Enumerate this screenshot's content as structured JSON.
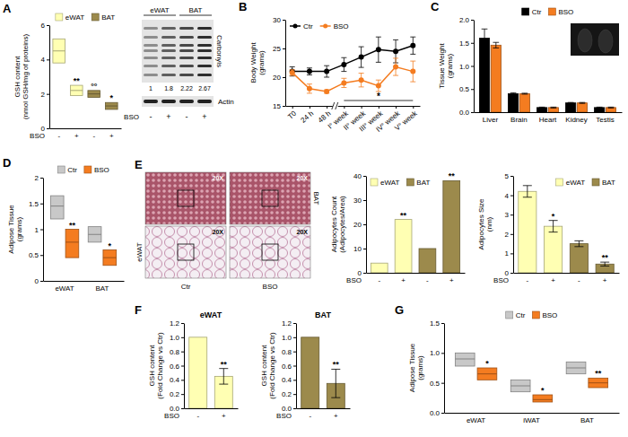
{
  "chart_data": [
    {
      "panel": "A",
      "type": "box",
      "y_label": [
        "GSH content",
        "(nmol GSH/mg of proteins)"
      ],
      "x_label": "BSO",
      "categories": [
        "-",
        "+",
        "-",
        "+"
      ],
      "values": [
        4.5,
        2.2,
        2.0,
        1.3
      ],
      "low": [
        3.8,
        1.9,
        1.8,
        1.1
      ],
      "high": [
        5.2,
        2.5,
        2.2,
        1.5
      ],
      "colors": [
        "#ffffb3",
        "#ffffb3",
        "#9c8a4c",
        "#9c8a4c"
      ],
      "legend_entries": [
        {
          "name": "eWAT",
          "color": "#ffffb3"
        },
        {
          "name": "BAT",
          "color": "#9c8a4c"
        }
      ],
      "significance": [
        null,
        "**",
        "°°",
        "*"
      ],
      "ylim": [
        0,
        6
      ],
      "yticks": [
        0,
        2,
        4,
        6
      ],
      "legend": "top"
    },
    {
      "panel": "B",
      "type": "line",
      "y_label": [
        "Body Weight",
        "(grams)"
      ],
      "categories": [
        "T0",
        "24 h",
        "48 h",
        "I° week",
        "II° week",
        "III° week",
        "IV° week",
        "V° week"
      ],
      "series": [
        {
          "name": "Ctr",
          "color": "#000000",
          "values": [
            21,
            21,
            21,
            22.2,
            23.5,
            24.8,
            24.5,
            25.5
          ],
          "errors": [
            0.8,
            0.6,
            1.0,
            1.2,
            1.8,
            2.2,
            2.0,
            1.5
          ]
        },
        {
          "name": "BSO",
          "color": "#f47c20",
          "values": [
            20.8,
            18,
            17.5,
            19,
            19.5,
            18.5,
            21.8,
            21
          ],
          "errors": [
            0.5,
            0.8,
            0.3,
            0.8,
            1.2,
            1.0,
            1.5,
            1.8
          ]
        }
      ],
      "annotation": "*",
      "ylim": [
        15,
        30
      ],
      "yticks": [
        15,
        20,
        25,
        30
      ],
      "marker": "circle",
      "legend": "top-left"
    },
    {
      "panel": "C",
      "type": "bar",
      "y_label": [
        "Tissue Weight",
        "(grams)"
      ],
      "categories": [
        "Liver",
        "Brain",
        "Heart",
        "Kidney",
        "Testis"
      ],
      "series": [
        {
          "name": "Ctr",
          "color": "#000000",
          "values": [
            1.6,
            0.4,
            0.1,
            0.2,
            0.1
          ],
          "errors": [
            0.2,
            0.02,
            0.01,
            0.01,
            0.01
          ]
        },
        {
          "name": "BSO",
          "color": "#f47c20",
          "values": [
            1.45,
            0.4,
            0.1,
            0.2,
            0.1
          ],
          "errors": [
            0.06,
            0.01,
            0.01,
            0.01,
            0.01
          ]
        }
      ],
      "ylim": [
        0,
        2
      ],
      "yticks": [
        {
          "value": 0,
          "label": "0.0"
        },
        0.5,
        {
          "value": 1,
          "label": "1.0"
        },
        1.5,
        {
          "value": 2,
          "label": "2.0"
        }
      ],
      "legend": "top"
    },
    {
      "panel": "D",
      "type": "box",
      "y_label": [
        "Adipose Tissue",
        "(grams)"
      ],
      "categories": [
        "eWAT",
        "BAT"
      ],
      "series": [
        {
          "name": "Ctr",
          "color": "#c8c8c8",
          "values": [
            1.45,
            0.9
          ],
          "low": [
            1.2,
            0.75
          ],
          "high": [
            1.65,
            1.05
          ]
        },
        {
          "name": "BSO",
          "color": "#f47c20",
          "values": [
            0.75,
            0.45
          ],
          "low": [
            0.45,
            0.3
          ],
          "high": [
            1.0,
            0.6
          ],
          "significance": [
            "**",
            "*"
          ]
        }
      ],
      "ylim": [
        0,
        2
      ],
      "yticks": [
        0,
        0.5,
        1,
        1.5,
        2
      ],
      "legend": "top"
    },
    {
      "panel": "E",
      "type": "bar",
      "y_label": [
        "Adipocytes Count",
        "(Adipocytes/Area)"
      ],
      "x_label": "BSO",
      "categories": [
        "-",
        "+",
        "-",
        "+"
      ],
      "values": [
        4,
        22,
        10,
        38
      ],
      "colors": [
        "#ffffb3",
        "#ffffb3",
        "#9c8a4c",
        "#9c8a4c"
      ],
      "legend_entries": [
        {
          "name": "eWAT",
          "color": "#ffffb3"
        },
        {
          "name": "BAT",
          "color": "#9c8a4c"
        }
      ],
      "significance": [
        null,
        "**",
        null,
        "**"
      ],
      "ylim": [
        0,
        40
      ],
      "yticks": [
        0,
        10,
        20,
        30,
        40
      ],
      "legend": "top-left"
    },
    {
      "type": "bar",
      "y_label": [
        "Adipocytes Size",
        "(nm)"
      ],
      "x_label": "BSO",
      "categories": [
        "-",
        "+",
        "-",
        "+"
      ],
      "values": [
        4.2,
        2.4,
        1.5,
        0.45
      ],
      "errors": [
        0.3,
        0.3,
        0.15,
        0.1
      ],
      "colors": [
        "#ffffb3",
        "#ffffb3",
        "#9c8a4c",
        "#9c8a4c"
      ],
      "legend_entries": [
        {
          "name": "eWAT",
          "color": "#ffffb3"
        },
        {
          "name": "BAT",
          "color": "#9c8a4c"
        }
      ],
      "significance": [
        null,
        "*",
        null,
        "**"
      ],
      "ylim": [
        0,
        5
      ],
      "yticks": [
        0,
        1,
        2,
        3,
        4,
        5
      ],
      "legend": "top-right"
    },
    {
      "panel": "F",
      "type": "bar",
      "title": "eWAT",
      "y_label": [
        "GSH content",
        "(Fold Change vs Ctr)"
      ],
      "x_label": "BSO",
      "categories": [
        "-",
        "+"
      ],
      "values": [
        1,
        0.45
      ],
      "errors": [
        null,
        0.11
      ],
      "color": "#ffffb3",
      "significance": [
        null,
        "**"
      ],
      "ylim": [
        0,
        1.2
      ],
      "yticks": [
        {
          "value": 0,
          "label": "0.0"
        },
        0.2,
        0.4,
        0.6,
        0.8,
        {
          "value": 1,
          "label": "1.0"
        },
        1.2
      ]
    },
    {
      "type": "bar",
      "title": "BAT",
      "y_label": [
        "GSH content",
        "(Fold Change vs Ctr)"
      ],
      "x_label": "BSO",
      "categories": [
        "-",
        "+"
      ],
      "values": [
        1,
        0.35
      ],
      "errors": [
        null,
        0.2
      ],
      "color": "#9c8a4c",
      "significance": [
        null,
        "**"
      ],
      "ylim": [
        0,
        1.2
      ],
      "yticks": [
        {
          "value": 0,
          "label": "0.0"
        },
        0.2,
        0.4,
        0.6,
        0.8,
        {
          "value": 1,
          "label": "1.0"
        },
        1.2
      ]
    },
    {
      "panel": "G",
      "type": "box",
      "y_label": [
        "Adipose Tissue",
        "(grams)"
      ],
      "categories": [
        "eWAT",
        "iWAT",
        "BAT"
      ],
      "series": [
        {
          "name": "Ctr",
          "color": "#c8c8c8",
          "values": [
            0.9,
            0.45,
            0.75
          ],
          "low": [
            0.78,
            0.35,
            0.65
          ],
          "high": [
            1.0,
            0.55,
            0.85
          ]
        },
        {
          "name": "BSO",
          "color": "#f47c20",
          "values": [
            0.65,
            0.22,
            0.5
          ],
          "low": [
            0.55,
            0.18,
            0.42
          ],
          "high": [
            0.75,
            0.3,
            0.58
          ],
          "significance": [
            "*",
            "*",
            "**"
          ]
        }
      ],
      "ylim": [
        0,
        1.5
      ],
      "yticks": [
        {
          "value": 0,
          "label": "0.0"
        },
        0.5,
        {
          "value": 1,
          "label": "1.0"
        },
        1.5
      ],
      "legend": "top"
    }
  ],
  "blot": {
    "groups": [
      "eWAT",
      "BAT"
    ],
    "x_label": "BSO",
    "lanes": [
      "-",
      "+",
      "-",
      "+"
    ],
    "carbonyls_label": "Carbonyls",
    "quantification": [
      1,
      1.8,
      2.22,
      2.67
    ],
    "loading_label": "Actin"
  },
  "histology": {
    "magnification": "20X",
    "rows": [
      "BAT",
      "eWAT"
    ],
    "columns": [
      "Ctr",
      "BSO"
    ]
  }
}
